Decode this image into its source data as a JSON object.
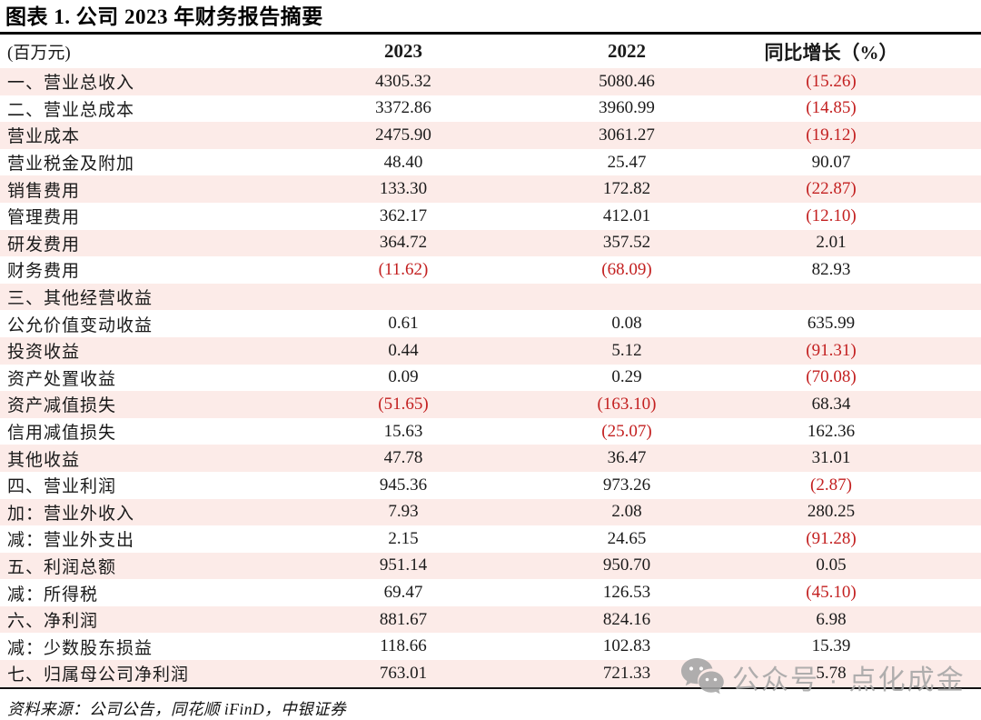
{
  "title": "图表 1. 公司 2023 年财务报告摘要",
  "table": {
    "unit_label": "(百万元)",
    "columns": {
      "col2023": "2023",
      "col2022": "2022",
      "yoy": "同比增长（%）"
    },
    "rows": [
      {
        "label": "一、营业总收入",
        "v2023": "4305.32",
        "v2022": "5080.46",
        "yoy": "(15.26)"
      },
      {
        "label": "二、营业总成本",
        "v2023": "3372.86",
        "v2022": "3960.99",
        "yoy": "(14.85)"
      },
      {
        "label": "营业成本",
        "v2023": "2475.90",
        "v2022": "3061.27",
        "yoy": "(19.12)"
      },
      {
        "label": "营业税金及附加",
        "v2023": "48.40",
        "v2022": "25.47",
        "yoy": "90.07"
      },
      {
        "label": "销售费用",
        "v2023": "133.30",
        "v2022": "172.82",
        "yoy": "(22.87)"
      },
      {
        "label": "管理费用",
        "v2023": "362.17",
        "v2022": "412.01",
        "yoy": "(12.10)"
      },
      {
        "label": "研发费用",
        "v2023": "364.72",
        "v2022": "357.52",
        "yoy": "2.01"
      },
      {
        "label": "财务费用",
        "v2023": "(11.62)",
        "v2022": "(68.09)",
        "yoy": "82.93"
      },
      {
        "label": "三、其他经营收益",
        "v2023": "",
        "v2022": "",
        "yoy": ""
      },
      {
        "label": "公允价值变动收益",
        "v2023": "0.61",
        "v2022": "0.08",
        "yoy": "635.99"
      },
      {
        "label": "投资收益",
        "v2023": "0.44",
        "v2022": "5.12",
        "yoy": "(91.31)"
      },
      {
        "label": "资产处置收益",
        "v2023": "0.09",
        "v2022": "0.29",
        "yoy": "(70.08)"
      },
      {
        "label": "资产减值损失",
        "v2023": "(51.65)",
        "v2022": "(163.10)",
        "yoy": "68.34"
      },
      {
        "label": "信用减值损失",
        "v2023": "15.63",
        "v2022": "(25.07)",
        "yoy": "162.36"
      },
      {
        "label": "其他收益",
        "v2023": "47.78",
        "v2022": "36.47",
        "yoy": "31.01"
      },
      {
        "label": "四、营业利润",
        "v2023": "945.36",
        "v2022": "973.26",
        "yoy": "(2.87)"
      },
      {
        "label": "加：营业外收入",
        "v2023": "7.93",
        "v2022": "2.08",
        "yoy": "280.25"
      },
      {
        "label": "减：营业外支出",
        "v2023": "2.15",
        "v2022": "24.65",
        "yoy": "(91.28)"
      },
      {
        "label": "五、利润总额",
        "v2023": "951.14",
        "v2022": "950.70",
        "yoy": "0.05"
      },
      {
        "label": "减：所得税",
        "v2023": "69.47",
        "v2022": "126.53",
        "yoy": "(45.10)"
      },
      {
        "label": "六、净利润",
        "v2023": "881.67",
        "v2022": "824.16",
        "yoy": "6.98"
      },
      {
        "label": "减：少数股东损益",
        "v2023": "118.66",
        "v2022": "102.83",
        "yoy": "15.39"
      },
      {
        "label": "七、归属母公司净利润",
        "v2023": "763.01",
        "v2022": "721.33",
        "yoy": "5.78"
      }
    ]
  },
  "source": "资料来源：公司公告，同花顺 iFinD，中银证券",
  "watermark": {
    "icon": "wechat-icon",
    "text": "公众号 · 点化成金"
  },
  "colors": {
    "stripe_pink": "#fcebe8",
    "negative_red": "#c32020",
    "text_black": "#1a1a1a",
    "watermark_gray": "#a5a5a5"
  }
}
